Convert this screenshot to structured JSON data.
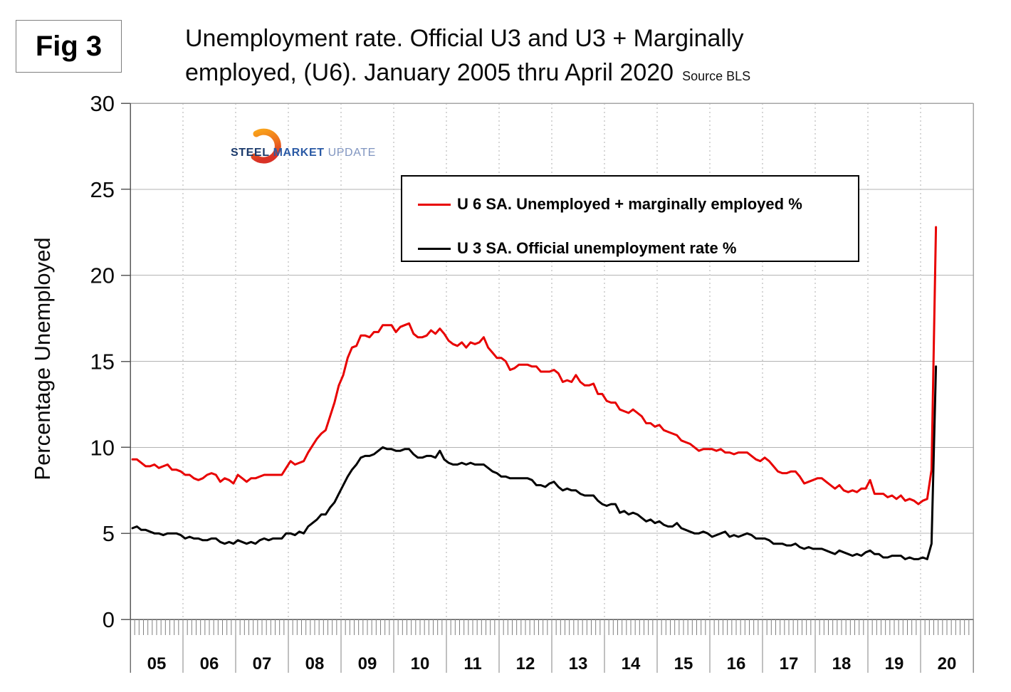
{
  "fig_label": "Fig 3",
  "title": {
    "line1": "Unemployment rate. Official U3 and U3 + Marginally",
    "line2": "employed, (U6). January 2005 thru April 2020",
    "source": "Source BLS"
  },
  "logo": {
    "word1": "STEEL",
    "word2": "MARKET",
    "word3": "UPDATE"
  },
  "chart_data": {
    "type": "line",
    "title": "Unemployment rate. Official U3 and U3 + Marginally employed, (U6). January 2005 thru April 2020",
    "ylabel": "Percentage Unemployed",
    "xlabel": "",
    "ylim": [
      0,
      30
    ],
    "yticks": [
      0,
      5,
      10,
      15,
      20,
      25,
      30
    ],
    "x_start": "2005-01",
    "x_end": "2020-04",
    "x_axis_years": 16,
    "months_per_year": 12,
    "year_labels": [
      "05",
      "06",
      "07",
      "08",
      "09",
      "10",
      "11",
      "12",
      "13",
      "14",
      "15",
      "16",
      "17",
      "18",
      "19",
      "20"
    ],
    "grid": {
      "horizontal": "solid",
      "vertical": "dotted-year-boundaries"
    },
    "legend_position": "upper-center-box",
    "series": [
      {
        "name": "U 6 SA. Unemployed + marginally employed %",
        "color": "#e80000",
        "values": [
          9.3,
          9.3,
          9.1,
          8.9,
          8.9,
          9.0,
          8.8,
          8.9,
          9.0,
          8.7,
          8.7,
          8.6,
          8.4,
          8.4,
          8.2,
          8.1,
          8.2,
          8.4,
          8.5,
          8.4,
          8.0,
          8.2,
          8.1,
          7.9,
          8.4,
          8.2,
          8.0,
          8.2,
          8.2,
          8.3,
          8.4,
          8.4,
          8.4,
          8.4,
          8.4,
          8.8,
          9.2,
          9.0,
          9.1,
          9.2,
          9.7,
          10.1,
          10.5,
          10.8,
          11.0,
          11.8,
          12.6,
          13.6,
          14.2,
          15.2,
          15.8,
          15.9,
          16.5,
          16.5,
          16.4,
          16.7,
          16.7,
          17.1,
          17.1,
          17.1,
          16.7,
          17.0,
          17.1,
          17.2,
          16.6,
          16.4,
          16.4,
          16.5,
          16.8,
          16.6,
          16.9,
          16.6,
          16.2,
          16.0,
          15.9,
          16.1,
          15.8,
          16.1,
          16.0,
          16.1,
          16.4,
          15.8,
          15.5,
          15.2,
          15.2,
          15.0,
          14.5,
          14.6,
          14.8,
          14.8,
          14.8,
          14.7,
          14.7,
          14.4,
          14.4,
          14.4,
          14.5,
          14.3,
          13.8,
          13.9,
          13.8,
          14.2,
          13.8,
          13.6,
          13.6,
          13.7,
          13.1,
          13.1,
          12.7,
          12.6,
          12.6,
          12.2,
          12.1,
          12.0,
          12.2,
          12.0,
          11.8,
          11.4,
          11.4,
          11.2,
          11.3,
          11.0,
          10.9,
          10.8,
          10.7,
          10.4,
          10.3,
          10.2,
          10.0,
          9.8,
          9.9,
          9.9,
          9.9,
          9.8,
          9.9,
          9.7,
          9.7,
          9.6,
          9.7,
          9.7,
          9.7,
          9.5,
          9.3,
          9.2,
          9.4,
          9.2,
          8.9,
          8.6,
          8.5,
          8.5,
          8.6,
          8.6,
          8.3,
          7.9,
          8.0,
          8.1,
          8.2,
          8.2,
          8.0,
          7.8,
          7.6,
          7.8,
          7.5,
          7.4,
          7.5,
          7.4,
          7.6,
          7.6,
          8.1,
          7.3,
          7.3,
          7.3,
          7.1,
          7.2,
          7.0,
          7.2,
          6.9,
          7.0,
          6.9,
          6.7,
          6.9,
          7.0,
          8.7,
          22.8
        ]
      },
      {
        "name": "U 3 SA. Official unemployment rate %",
        "color": "#000000",
        "values": [
          5.3,
          5.4,
          5.2,
          5.2,
          5.1,
          5.0,
          5.0,
          4.9,
          5.0,
          5.0,
          5.0,
          4.9,
          4.7,
          4.8,
          4.7,
          4.7,
          4.6,
          4.6,
          4.7,
          4.7,
          4.5,
          4.4,
          4.5,
          4.4,
          4.6,
          4.5,
          4.4,
          4.5,
          4.4,
          4.6,
          4.7,
          4.6,
          4.7,
          4.7,
          4.7,
          5.0,
          5.0,
          4.9,
          5.1,
          5.0,
          5.4,
          5.6,
          5.8,
          6.1,
          6.1,
          6.5,
          6.8,
          7.3,
          7.8,
          8.3,
          8.7,
          9.0,
          9.4,
          9.5,
          9.5,
          9.6,
          9.8,
          10.0,
          9.9,
          9.9,
          9.8,
          9.8,
          9.9,
          9.9,
          9.6,
          9.4,
          9.4,
          9.5,
          9.5,
          9.4,
          9.8,
          9.3,
          9.1,
          9.0,
          9.0,
          9.1,
          9.0,
          9.1,
          9.0,
          9.0,
          9.0,
          8.8,
          8.6,
          8.5,
          8.3,
          8.3,
          8.2,
          8.2,
          8.2,
          8.2,
          8.2,
          8.1,
          7.8,
          7.8,
          7.7,
          7.9,
          8.0,
          7.7,
          7.5,
          7.6,
          7.5,
          7.5,
          7.3,
          7.2,
          7.2,
          7.2,
          6.9,
          6.7,
          6.6,
          6.7,
          6.7,
          6.2,
          6.3,
          6.1,
          6.2,
          6.1,
          5.9,
          5.7,
          5.8,
          5.6,
          5.7,
          5.5,
          5.4,
          5.4,
          5.6,
          5.3,
          5.2,
          5.1,
          5.0,
          5.0,
          5.1,
          5.0,
          4.8,
          4.9,
          5.0,
          5.1,
          4.8,
          4.9,
          4.8,
          4.9,
          5.0,
          4.9,
          4.7,
          4.7,
          4.7,
          4.6,
          4.4,
          4.4,
          4.4,
          4.3,
          4.3,
          4.4,
          4.2,
          4.1,
          4.2,
          4.1,
          4.1,
          4.1,
          4.0,
          3.9,
          3.8,
          4.0,
          3.9,
          3.8,
          3.7,
          3.8,
          3.7,
          3.9,
          4.0,
          3.8,
          3.8,
          3.6,
          3.6,
          3.7,
          3.7,
          3.7,
          3.5,
          3.6,
          3.5,
          3.5,
          3.6,
          3.5,
          4.4,
          14.7
        ]
      }
    ]
  },
  "colors": {
    "u6_red": "#e80000",
    "u3_black": "#000000",
    "h_gridline": "#b3b3b3",
    "v_gridline": "#c9c9c9",
    "axis": "#595959",
    "border": "#a6a6a6",
    "minor_tick": "#808080"
  }
}
